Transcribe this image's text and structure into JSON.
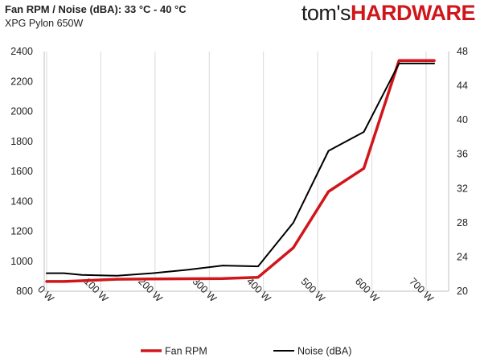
{
  "header": {
    "title": "Fan RPM / Noise (dBA): 33 °C - 40 °C",
    "subtitle": "XPG Pylon 650W",
    "logo_part1": "tom's",
    "logo_part2": "HARDWARE"
  },
  "colors": {
    "rpm": "#d0161b",
    "noise": "#000000",
    "grid": "#d9d9d9"
  },
  "chart_data": {
    "type": "line",
    "title": "Fan RPM / Noise (dBA): 33 °C - 40 °C",
    "subtitle": "XPG Pylon 650W",
    "xlim": [
      0,
      700
    ],
    "x_ticks": [
      0,
      100,
      200,
      300,
      400,
      500,
      600,
      700
    ],
    "x_tick_labels": [
      "0 W",
      "100 W",
      "200 W",
      "300 W",
      "400 W",
      "500 W",
      "600 W",
      "700 W"
    ],
    "y_left": {
      "range": [
        800,
        2400
      ],
      "ticks": [
        "800",
        "1000",
        "1200",
        "1400",
        "1600",
        "1800",
        "2000",
        "2200",
        "2400"
      ]
    },
    "y_right": {
      "range": [
        20,
        48
      ],
      "ticks": [
        "20",
        "24",
        "28",
        "32",
        "36",
        "40",
        "44",
        "48"
      ]
    },
    "grid": "vertical",
    "legend": "bottom",
    "series": [
      {
        "name": "Fan RPM",
        "axis": "left",
        "x": [
          0,
          32,
          65,
          130,
          195,
          260,
          325,
          390,
          455,
          520,
          585,
          650,
          715
        ],
        "y": [
          865,
          865,
          870,
          880,
          882,
          883,
          885,
          893,
          1090,
          1465,
          1620,
          2340,
          2340
        ]
      },
      {
        "name": "Noise (dBA)",
        "axis": "right",
        "x": [
          0,
          32,
          65,
          130,
          195,
          260,
          325,
          390,
          455,
          520,
          585,
          650,
          715
        ],
        "y": [
          22.1,
          22.1,
          21.9,
          21.8,
          22.1,
          22.5,
          23.0,
          22.9,
          28.0,
          36.4,
          38.6,
          46.6,
          46.6
        ]
      }
    ]
  }
}
